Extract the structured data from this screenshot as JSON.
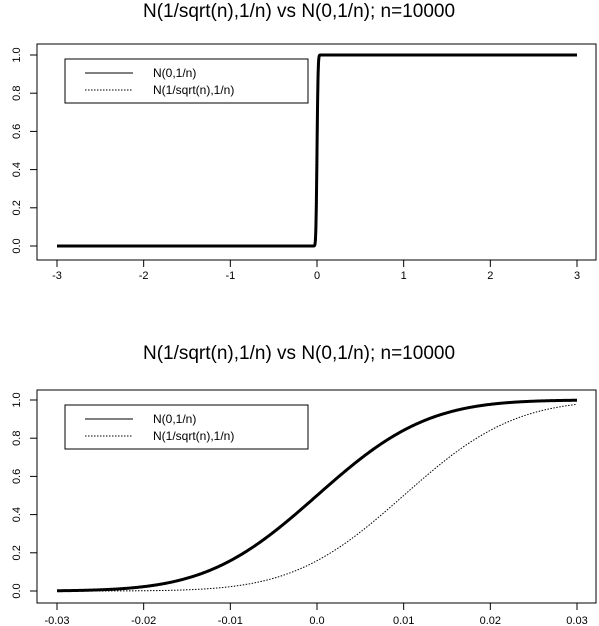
{
  "chart_data": [
    {
      "type": "line",
      "title": "N(1/sqrt(n),1/n) vs N(0,1/n); n=10000",
      "xlabel": "",
      "ylabel": "",
      "xlim": [
        -3,
        3
      ],
      "ylim": [
        0,
        1
      ],
      "x_ticks": [
        "-3",
        "-2",
        "-1",
        "0",
        "1",
        "2",
        "3"
      ],
      "y_ticks": [
        "0.0",
        "0.2",
        "0.4",
        "0.6",
        "0.8",
        "1.0"
      ],
      "legend": "top-left",
      "series": [
        {
          "name": "N(0,1/n)",
          "line_style": "solid",
          "mean": 0,
          "sd": 0.01,
          "x": [
            -3,
            -1,
            -0.03,
            -0.02,
            -0.01,
            0,
            0.01,
            0.02,
            0.03,
            1,
            3
          ],
          "y": [
            0,
            0,
            0.001,
            0.023,
            0.159,
            0.5,
            0.841,
            0.977,
            0.999,
            1,
            1
          ]
        },
        {
          "name": "N(1/sqrt(n),1/n)",
          "line_style": "dotted",
          "mean": 0.01,
          "sd": 0.01,
          "x": [
            -3,
            -1,
            -0.03,
            -0.02,
            -0.01,
            0,
            0.01,
            0.02,
            0.03,
            1,
            3
          ],
          "y": [
            0,
            0,
            0,
            0.001,
            0.023,
            0.159,
            0.5,
            0.841,
            0.977,
            1,
            1
          ]
        }
      ]
    },
    {
      "type": "line",
      "title": "N(1/sqrt(n),1/n) vs N(0,1/n); n=10000",
      "xlabel": "",
      "ylabel": "",
      "xlim": [
        -0.03,
        0.03
      ],
      "ylim": [
        0,
        1
      ],
      "x_ticks": [
        "-0.03",
        "-0.02",
        "-0.01",
        "0.0",
        "0.01",
        "0.02",
        "0.03"
      ],
      "y_ticks": [
        "0.0",
        "0.2",
        "0.4",
        "0.6",
        "0.8",
        "1.0"
      ],
      "legend": "top-left",
      "series": [
        {
          "name": "N(0,1/n)",
          "line_style": "solid",
          "mean": 0,
          "sd": 0.01,
          "x": [
            -0.03,
            -0.025,
            -0.02,
            -0.015,
            -0.01,
            -0.005,
            0,
            0.005,
            0.01,
            0.015,
            0.02,
            0.025,
            0.03
          ],
          "y": [
            0.001,
            0.006,
            0.023,
            0.067,
            0.159,
            0.309,
            0.5,
            0.691,
            0.841,
            0.933,
            0.977,
            0.994,
            0.999
          ]
        },
        {
          "name": "N(1/sqrt(n),1/n)",
          "line_style": "dotted",
          "mean": 0.01,
          "sd": 0.01,
          "x": [
            -0.03,
            -0.025,
            -0.02,
            -0.015,
            -0.01,
            -0.005,
            0,
            0.005,
            0.01,
            0.015,
            0.02,
            0.025,
            0.03
          ],
          "y": [
            0,
            0,
            0.001,
            0.006,
            0.023,
            0.067,
            0.159,
            0.309,
            0.5,
            0.691,
            0.841,
            0.933,
            0.977
          ]
        }
      ]
    }
  ]
}
